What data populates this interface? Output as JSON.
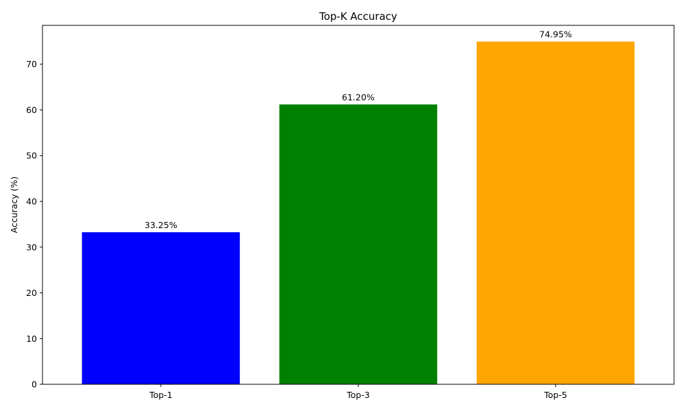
{
  "chart_data": {
    "type": "bar",
    "title": "Top-K Accuracy",
    "xlabel": "",
    "ylabel": "Accuracy (%)",
    "categories": [
      "Top-1",
      "Top-3",
      "Top-5"
    ],
    "values": [
      33.25,
      61.2,
      74.95
    ],
    "data_labels": [
      "33.25%",
      "61.20%",
      "74.95%"
    ],
    "colors": [
      "#0000ff",
      "#008000",
      "#ffa500"
    ],
    "ylim": [
      0,
      78.5
    ],
    "yticks": [
      0,
      10,
      20,
      30,
      40,
      50,
      60,
      70
    ],
    "ytick_labels": [
      "0",
      "10",
      "20",
      "30",
      "40",
      "50",
      "60",
      "70"
    ],
    "grid": false,
    "legend": "none"
  }
}
